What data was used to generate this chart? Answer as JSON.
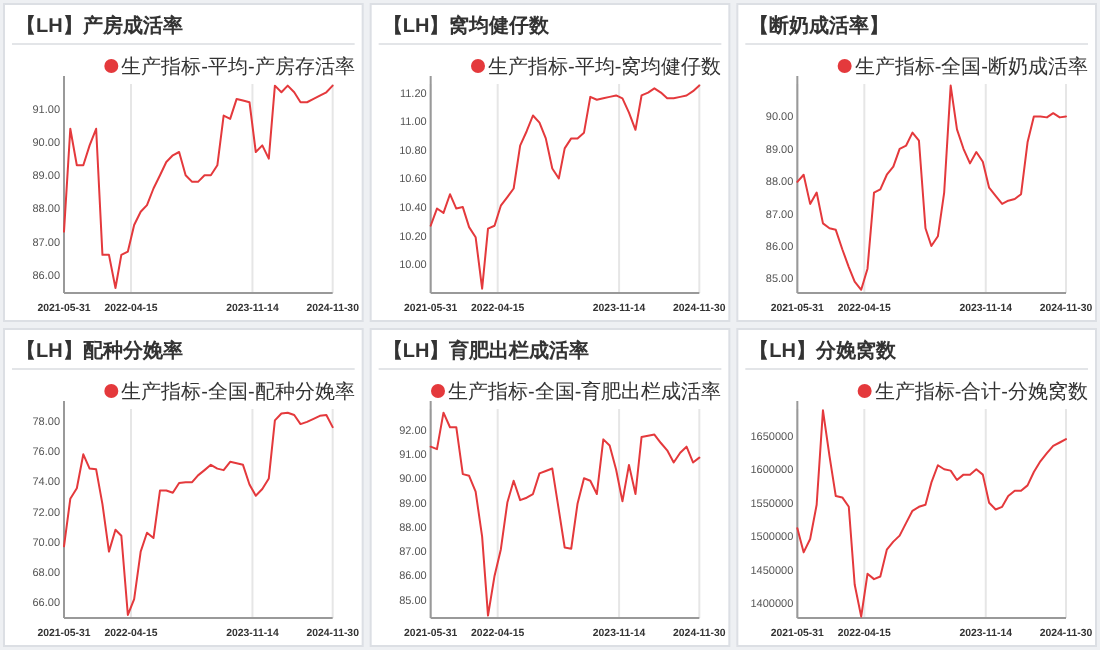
{
  "chart_data": [
    {
      "type": "line",
      "title": "【LH】产房成活率",
      "x": [
        "2021-05-31",
        "2021-06-30",
        "2021-07-31",
        "2021-08-31",
        "2021-09-30",
        "2021-10-31",
        "2021-11-30",
        "2021-12-31",
        "2022-01-31",
        "2022-02-28",
        "2022-03-31",
        "2022-04-30",
        "2022-05-31",
        "2022-06-30",
        "2022-07-31",
        "2022-08-31",
        "2022-09-30",
        "2022-10-31",
        "2022-11-30",
        "2022-12-31",
        "2023-01-31",
        "2023-02-28",
        "2023-03-31",
        "2023-04-30",
        "2023-05-31",
        "2023-06-30",
        "2023-07-31",
        "2023-08-31",
        "2023-09-30",
        "2023-10-31",
        "2023-11-30",
        "2023-12-31",
        "2024-01-31",
        "2024-02-29",
        "2024-03-31",
        "2024-04-30",
        "2024-05-31",
        "2024-06-30",
        "2024-07-31",
        "2024-08-31",
        "2024-09-30",
        "2024-10-31",
        "2024-11-30"
      ],
      "series": [
        {
          "name": "生产指标-平均-产房存活率",
          "color": "#e4393c",
          "values": [
            87.3,
            90.4,
            89.3,
            89.3,
            89.9,
            90.4,
            86.6,
            86.6,
            85.6,
            86.6,
            86.7,
            87.5,
            87.9,
            88.1,
            88.6,
            89.0,
            89.4,
            89.6,
            89.7,
            89.0,
            88.8,
            88.8,
            89.0,
            89.0,
            89.3,
            90.8,
            90.7,
            91.3,
            91.25,
            91.2,
            89.7,
            89.9,
            89.5,
            91.7,
            91.5,
            91.7,
            91.5,
            91.2,
            91.2,
            91.3,
            91.4,
            91.5,
            91.7
          ]
        }
      ],
      "xlim": [
        "2021-05-31",
        "2024-11-30"
      ],
      "xticks": [
        "2021-05-31",
        "2022-04-15",
        "2023-11-14",
        "2024-11-30"
      ],
      "ylim": [
        85.45,
        91.75
      ],
      "yticks": [
        {
          "value": 86,
          "label": "86.00"
        },
        {
          "value": 87,
          "label": "87.00"
        },
        {
          "value": 88,
          "label": "88.00"
        },
        {
          "value": 89,
          "label": "89.00"
        },
        {
          "value": 90,
          "label": "90.00"
        },
        {
          "value": 91,
          "label": "91.00"
        }
      ],
      "grid": "x",
      "legend": "top right"
    },
    {
      "type": "line",
      "title": "【LH】窝均健仔数",
      "x": [
        "2021-05-31",
        "2021-06-30",
        "2021-07-31",
        "2021-08-31",
        "2021-09-30",
        "2021-10-31",
        "2021-11-30",
        "2021-12-31",
        "2022-01-31",
        "2022-02-28",
        "2022-03-31",
        "2022-04-30",
        "2022-05-31",
        "2022-06-30",
        "2022-07-31",
        "2022-08-31",
        "2022-09-30",
        "2022-10-31",
        "2022-11-30",
        "2022-12-31",
        "2023-01-31",
        "2023-02-28",
        "2023-03-31",
        "2023-04-30",
        "2023-05-31",
        "2023-06-30",
        "2023-07-31",
        "2023-08-31",
        "2023-09-30",
        "2023-10-31",
        "2023-11-30",
        "2023-12-31",
        "2024-01-31",
        "2024-02-29",
        "2024-03-31",
        "2024-04-30",
        "2024-05-31",
        "2024-06-30",
        "2024-07-31",
        "2024-08-31",
        "2024-09-30",
        "2024-10-31",
        "2024-11-30"
      ],
      "series": [
        {
          "name": "生产指标-平均-窝均健仔数",
          "color": "#e4393c",
          "values": [
            10.27,
            10.39,
            10.36,
            10.49,
            10.39,
            10.4,
            10.26,
            10.19,
            9.83,
            10.25,
            10.27,
            10.41,
            10.47,
            10.53,
            10.83,
            10.93,
            11.04,
            10.99,
            10.88,
            10.67,
            10.6,
            10.81,
            10.88,
            10.88,
            10.92,
            11.17,
            11.15,
            11.16,
            11.17,
            11.18,
            11.16,
            11.06,
            10.94,
            11.18,
            11.2,
            11.23,
            11.2,
            11.16,
            11.16,
            11.17,
            11.18,
            11.21,
            11.25
          ]
        }
      ],
      "xlim": [
        "2021-05-31",
        "2024-11-30"
      ],
      "xticks": [
        "2021-05-31",
        "2022-04-15",
        "2023-11-14",
        "2024-11-30"
      ],
      "ylim": [
        9.8,
        11.26
      ],
      "yticks": [
        {
          "value": 10,
          "label": "10.00"
        },
        {
          "value": 10.2,
          "label": "10.20"
        },
        {
          "value": 10.4,
          "label": "10.40"
        },
        {
          "value": 10.6,
          "label": "10.60"
        },
        {
          "value": 10.8,
          "label": "10.80"
        },
        {
          "value": 11,
          "label": "11.00"
        },
        {
          "value": 11.2,
          "label": "11.20"
        }
      ],
      "grid": "x",
      "legend": "top right"
    },
    {
      "type": "line",
      "title": "【断奶成活率】",
      "x": [
        "2021-05-31",
        "2021-06-30",
        "2021-07-31",
        "2021-08-31",
        "2021-09-30",
        "2021-10-31",
        "2021-11-30",
        "2021-12-31",
        "2022-01-31",
        "2022-02-28",
        "2022-03-31",
        "2022-04-30",
        "2022-05-31",
        "2022-06-30",
        "2022-07-31",
        "2022-08-31",
        "2022-09-30",
        "2022-10-31",
        "2022-11-30",
        "2022-12-31",
        "2023-01-31",
        "2023-02-28",
        "2023-03-31",
        "2023-04-30",
        "2023-05-31",
        "2023-06-30",
        "2023-07-31",
        "2023-08-31",
        "2023-09-30",
        "2023-10-31",
        "2023-11-30",
        "2023-12-31",
        "2024-01-31",
        "2024-02-29",
        "2024-03-31",
        "2024-04-30",
        "2024-05-31",
        "2024-06-30",
        "2024-07-31",
        "2024-08-31",
        "2024-09-30",
        "2024-10-31",
        "2024-11-30"
      ],
      "series": [
        {
          "name": "生产指标-全国-断奶成活率",
          "color": "#e4393c",
          "values": [
            87.98,
            88.2,
            87.3,
            87.65,
            86.7,
            86.55,
            86.5,
            85.9,
            85.35,
            84.9,
            84.65,
            85.3,
            87.65,
            87.75,
            88.2,
            88.45,
            89.0,
            89.1,
            89.5,
            89.25,
            86.55,
            86.0,
            86.3,
            87.65,
            90.95,
            89.6,
            89.0,
            88.55,
            88.9,
            88.6,
            87.8,
            87.55,
            87.3,
            87.4,
            87.45,
            87.6,
            89.2,
            90.0,
            90.0,
            89.97,
            90.1,
            89.97,
            90.0
          ]
        }
      ],
      "xlim": [
        "2021-05-31",
        "2024-11-30"
      ],
      "xticks": [
        "2021-05-31",
        "2022-04-15",
        "2023-11-14",
        "2024-11-30"
      ],
      "ylim": [
        84.55,
        91.0
      ],
      "yticks": [
        {
          "value": 85,
          "label": "85.00"
        },
        {
          "value": 86,
          "label": "86.00"
        },
        {
          "value": 87,
          "label": "87.00"
        },
        {
          "value": 88,
          "label": "88.00"
        },
        {
          "value": 89,
          "label": "89.00"
        },
        {
          "value": 90,
          "label": "90.00"
        }
      ],
      "grid": "x",
      "legend": "top right"
    },
    {
      "type": "line",
      "title": "【LH】配种分娩率",
      "x": [
        "2021-05-31",
        "2021-06-30",
        "2021-07-31",
        "2021-08-31",
        "2021-09-30",
        "2021-10-31",
        "2021-11-30",
        "2021-12-31",
        "2022-01-31",
        "2022-02-28",
        "2022-03-31",
        "2022-04-30",
        "2022-05-31",
        "2022-06-30",
        "2022-07-31",
        "2022-08-31",
        "2022-09-30",
        "2022-10-31",
        "2022-11-30",
        "2022-12-31",
        "2023-01-31",
        "2023-02-28",
        "2023-03-31",
        "2023-04-30",
        "2023-05-31",
        "2023-06-30",
        "2023-07-31",
        "2023-08-31",
        "2023-09-30",
        "2023-10-31",
        "2023-11-30",
        "2023-12-31",
        "2024-01-31",
        "2024-02-29",
        "2024-03-31",
        "2024-04-30",
        "2024-05-31",
        "2024-06-30",
        "2024-07-31",
        "2024-08-31",
        "2024-09-30",
        "2024-10-31",
        "2024-11-30"
      ],
      "series": [
        {
          "name": "生产指标-全国-配种分娩率",
          "color": "#e4393c",
          "values": [
            69.7,
            72.85,
            73.55,
            75.8,
            74.85,
            74.8,
            72.5,
            69.35,
            70.8,
            70.4,
            65.15,
            66.2,
            69.35,
            70.6,
            70.25,
            73.4,
            73.4,
            73.25,
            73.9,
            73.95,
            73.95,
            74.4,
            74.75,
            75.1,
            74.85,
            74.75,
            75.3,
            75.2,
            75.1,
            73.8,
            73.05,
            73.5,
            74.2,
            78.05,
            78.5,
            78.55,
            78.4,
            77.8,
            77.95,
            78.15,
            78.35,
            78.4,
            77.6
          ]
        }
      ],
      "xlim": [
        "2021-05-31",
        "2024-11-30"
      ],
      "xticks": [
        "2021-05-31",
        "2022-04-15",
        "2023-11-14",
        "2024-11-30"
      ],
      "ylim": [
        64.95,
        78.8
      ],
      "yticks": [
        {
          "value": 66,
          "label": "66.00"
        },
        {
          "value": 68,
          "label": "68.00"
        },
        {
          "value": 70,
          "label": "70.00"
        },
        {
          "value": 72,
          "label": "72.00"
        },
        {
          "value": 74,
          "label": "74.00"
        },
        {
          "value": 76,
          "label": "76.00"
        },
        {
          "value": 78,
          "label": "78.00"
        }
      ],
      "grid": "x",
      "legend": "top right"
    },
    {
      "type": "line",
      "title": "【LH】育肥出栏成活率",
      "x": [
        "2021-05-31",
        "2021-06-30",
        "2021-07-31",
        "2021-08-31",
        "2021-09-30",
        "2021-10-31",
        "2021-11-30",
        "2021-12-31",
        "2022-01-31",
        "2022-02-28",
        "2022-03-31",
        "2022-04-30",
        "2022-05-31",
        "2022-06-30",
        "2022-07-31",
        "2022-08-31",
        "2022-09-30",
        "2022-10-31",
        "2022-11-30",
        "2022-12-31",
        "2023-01-31",
        "2023-02-28",
        "2023-03-31",
        "2023-04-30",
        "2023-05-31",
        "2023-06-30",
        "2023-07-31",
        "2023-08-31",
        "2023-09-30",
        "2023-10-31",
        "2023-11-30",
        "2023-12-31",
        "2024-01-31",
        "2024-02-29",
        "2024-03-31",
        "2024-04-30",
        "2024-05-31",
        "2024-06-30",
        "2024-07-31",
        "2024-08-31",
        "2024-09-30",
        "2024-10-31",
        "2024-11-30"
      ],
      "series": [
        {
          "name": "生产指标-全国-育肥出栏成活率",
          "color": "#e4393c",
          "values": [
            91.3,
            91.2,
            92.7,
            92.1,
            92.1,
            90.17,
            90.1,
            89.45,
            87.6,
            84.35,
            85.98,
            87.07,
            89.0,
            89.9,
            89.1,
            89.2,
            89.35,
            90.2,
            90.3,
            90.4,
            88.7,
            87.15,
            87.1,
            88.95,
            90.0,
            89.9,
            89.35,
            91.6,
            91.35,
            90.35,
            89.05,
            90.55,
            89.35,
            91.7,
            91.75,
            91.8,
            91.45,
            91.15,
            90.65,
            91.05,
            91.3,
            90.65,
            90.85
          ]
        }
      ],
      "xlim": [
        "2021-05-31",
        "2024-11-30"
      ],
      "xticks": [
        "2021-05-31",
        "2022-04-15",
        "2023-11-14",
        "2024-11-30"
      ],
      "ylim": [
        84.25,
        92.85
      ],
      "yticks": [
        {
          "value": 85,
          "label": "85.00"
        },
        {
          "value": 86,
          "label": "86.00"
        },
        {
          "value": 87,
          "label": "87.00"
        },
        {
          "value": 88,
          "label": "88.00"
        },
        {
          "value": 89,
          "label": "89.00"
        },
        {
          "value": 90,
          "label": "90.00"
        },
        {
          "value": 91,
          "label": "91.00"
        },
        {
          "value": 92,
          "label": "92.00"
        }
      ],
      "grid": "x",
      "legend": "top right"
    },
    {
      "type": "line",
      "title": "【LH】分娩窝数",
      "x": [
        "2021-05-31",
        "2021-06-30",
        "2021-07-31",
        "2021-08-31",
        "2021-09-30",
        "2021-10-31",
        "2021-11-30",
        "2021-12-31",
        "2022-01-31",
        "2022-02-28",
        "2022-03-31",
        "2022-04-30",
        "2022-05-31",
        "2022-06-30",
        "2022-07-31",
        "2022-08-31",
        "2022-09-30",
        "2022-10-31",
        "2022-11-30",
        "2022-12-31",
        "2023-01-31",
        "2023-02-28",
        "2023-03-31",
        "2023-04-30",
        "2023-05-31",
        "2023-06-30",
        "2023-07-31",
        "2023-08-31",
        "2023-09-30",
        "2023-10-31",
        "2023-11-30",
        "2023-12-31",
        "2024-01-31",
        "2024-02-29",
        "2024-03-31",
        "2024-04-30",
        "2024-05-31",
        "2024-06-30",
        "2024-07-31",
        "2024-08-31",
        "2024-09-30",
        "2024-10-31",
        "2024-11-30"
      ],
      "series": [
        {
          "name": "生产指标-合计-分娩窝数",
          "color": "#e4393c",
          "values": [
            1512000,
            1476000,
            1496000,
            1547000,
            1688000,
            1620000,
            1560000,
            1558000,
            1544000,
            1428000,
            1380000,
            1444000,
            1436000,
            1440000,
            1480000,
            1492000,
            1501000,
            1520000,
            1538000,
            1544000,
            1547000,
            1580000,
            1606000,
            1600000,
            1598000,
            1584000,
            1592000,
            1592000,
            1600000,
            1592000,
            1550000,
            1540000,
            1544000,
            1560000,
            1568000,
            1568000,
            1576000,
            1596000,
            1612000,
            1624000,
            1635000,
            1640000,
            1645000
          ]
        }
      ],
      "xlim": [
        "2021-05-31",
        "2024-11-30"
      ],
      "xticks": [
        "2021-05-31",
        "2022-04-15",
        "2023-11-14",
        "2024-11-30"
      ],
      "ylim": [
        1378000,
        1690000
      ],
      "yticks": [
        1400000,
        1450000,
        1500000,
        1550000,
        1600000,
        1650000
      ],
      "grid": "x",
      "legend": "top right"
    }
  ]
}
